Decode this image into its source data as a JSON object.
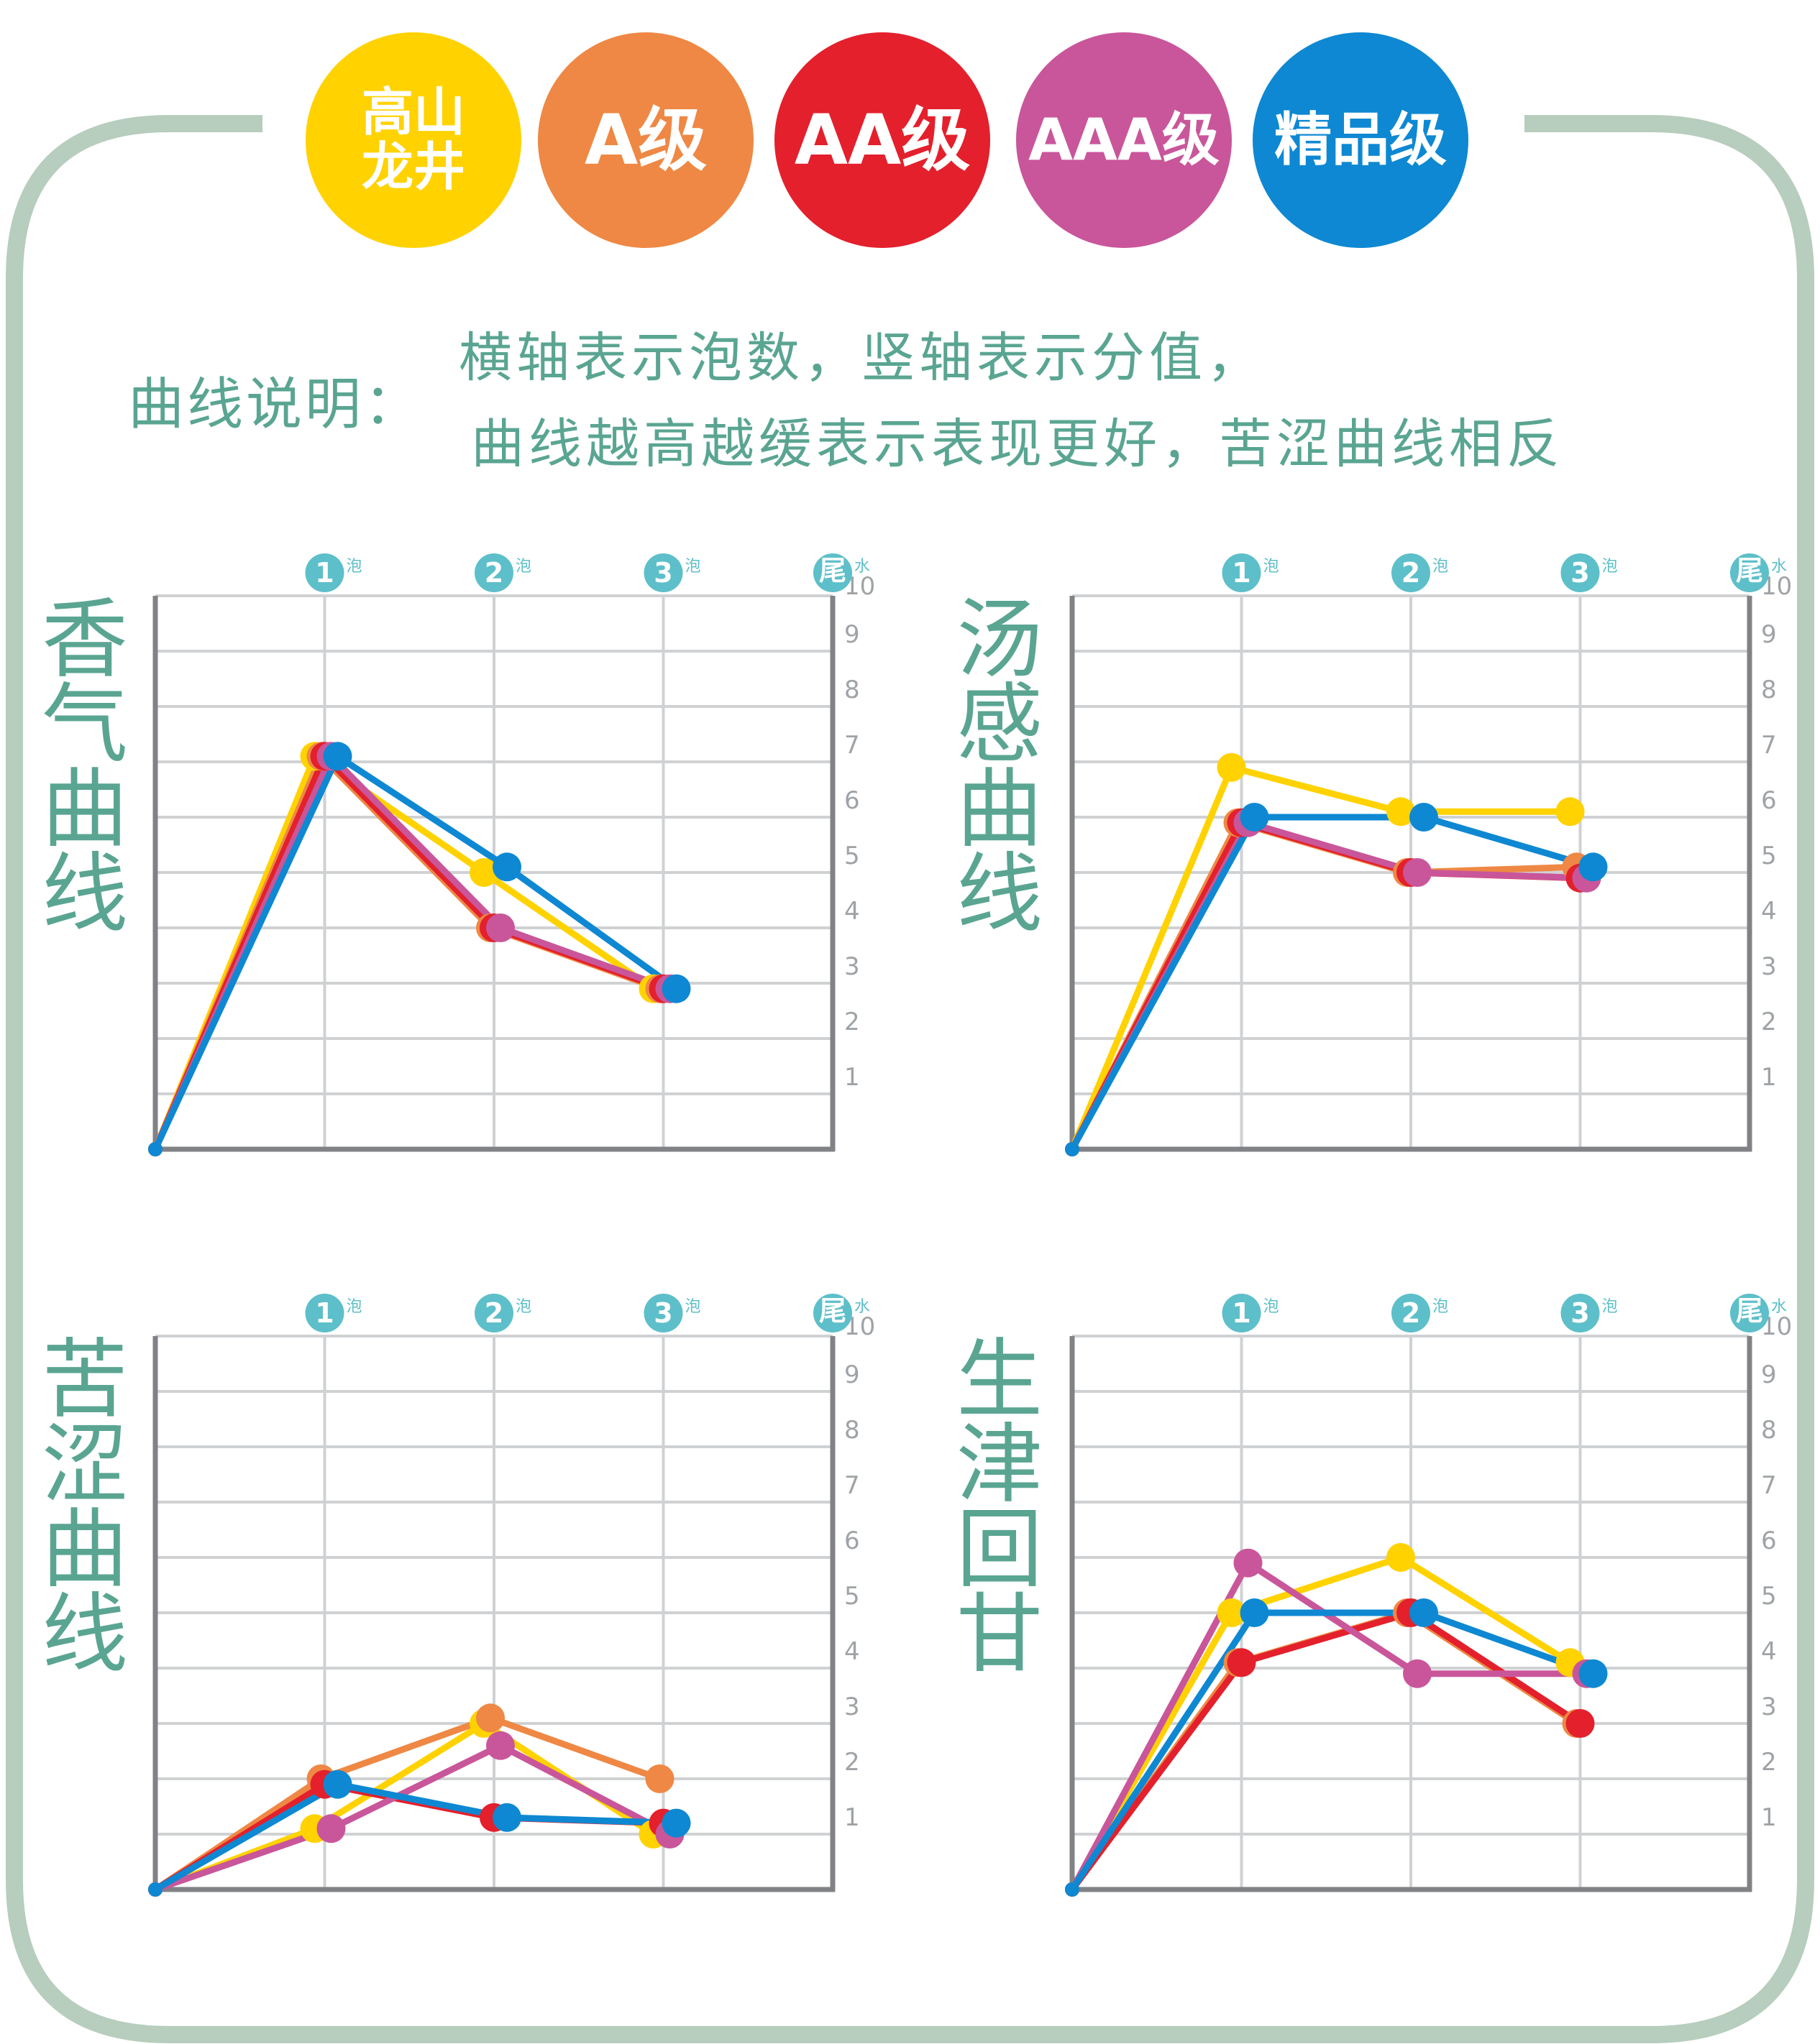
{
  "legend": [
    {
      "label": "高山\n龙井",
      "color": "#ffd200",
      "font_size": 72
    },
    {
      "label": "A级",
      "color": "#ee8844",
      "font_size": 96
    },
    {
      "label": "AA级",
      "color": "#e3202c",
      "font_size": 96
    },
    {
      "label": "AAA级",
      "color": "#c9569a",
      "font_size": 80
    },
    {
      "label": "精品级",
      "color": "#0e88d2",
      "font_size": 80
    }
  ],
  "note": {
    "title": "曲线说明：",
    "line1": "横轴表示泡数，竖轴表示分值，",
    "line2": "曲线越高越缓表示表现更好，苦涩曲线相反"
  },
  "x_markers": [
    {
      "num": "1",
      "unit": "泡"
    },
    {
      "num": "2",
      "unit": "泡"
    },
    {
      "num": "3",
      "unit": "泡"
    },
    {
      "num": "尾",
      "unit": "水"
    }
  ],
  "y_ticks": [
    "1",
    "2",
    "3",
    "4",
    "5",
    "6",
    "7",
    "8",
    "9",
    "10"
  ],
  "colors": {
    "frame": "#b7cdbd",
    "grid": "#cfd1d3",
    "axis": "#808285",
    "marker": "#5dbfc9",
    "title": "#5aa592"
  },
  "chart_data": [
    {
      "type": "line",
      "title": "香气曲线",
      "x": [
        0,
        1,
        2,
        3
      ],
      "ylim": [
        0,
        10
      ],
      "series": [
        {
          "name": "高山龙井",
          "color": "#ffd200",
          "values": [
            0,
            7.1,
            5.0,
            2.9
          ]
        },
        {
          "name": "A级",
          "color": "#ee8844",
          "values": [
            0,
            7.1,
            4.0,
            2.9
          ]
        },
        {
          "name": "AA级",
          "color": "#e3202c",
          "values": [
            0,
            7.1,
            4.0,
            2.9
          ]
        },
        {
          "name": "AAA级",
          "color": "#c9569a",
          "values": [
            0,
            7.1,
            4.0,
            2.9
          ]
        },
        {
          "name": "精品级",
          "color": "#0e88d2",
          "values": [
            0,
            7.1,
            5.1,
            2.9
          ]
        }
      ]
    },
    {
      "type": "line",
      "title": "汤感曲线",
      "x": [
        0,
        1,
        2,
        3
      ],
      "ylim": [
        0,
        10
      ],
      "series": [
        {
          "name": "高山龙井",
          "color": "#ffd200",
          "values": [
            0,
            6.9,
            6.1,
            6.1
          ]
        },
        {
          "name": "A级",
          "color": "#ee8844",
          "values": [
            0,
            5.9,
            5.0,
            5.1
          ]
        },
        {
          "name": "AA级",
          "color": "#e3202c",
          "values": [
            0,
            5.9,
            5.0,
            4.9
          ]
        },
        {
          "name": "AAA级",
          "color": "#c9569a",
          "values": [
            0,
            5.9,
            5.0,
            4.9
          ]
        },
        {
          "name": "精品级",
          "color": "#0e88d2",
          "values": [
            0,
            6.0,
            6.0,
            5.1
          ]
        }
      ]
    },
    {
      "type": "line",
      "title": "苦涩曲线",
      "x": [
        0,
        1,
        2,
        3
      ],
      "ylim": [
        0,
        10
      ],
      "series": [
        {
          "name": "高山龙井",
          "color": "#ffd200",
          "values": [
            0,
            1.1,
            3.0,
            1.0
          ]
        },
        {
          "name": "A级",
          "color": "#ee8844",
          "values": [
            0,
            2.0,
            3.1,
            2.0
          ]
        },
        {
          "name": "AA级",
          "color": "#e3202c",
          "values": [
            0,
            1.9,
            1.3,
            1.2
          ]
        },
        {
          "name": "AAA级",
          "color": "#c9569a",
          "values": [
            0,
            1.1,
            2.6,
            1.0
          ]
        },
        {
          "name": "精品级",
          "color": "#0e88d2",
          "values": [
            0,
            1.9,
            1.3,
            1.2
          ]
        }
      ]
    },
    {
      "type": "line",
      "title": "生津回甘",
      "x": [
        0,
        1,
        2,
        3
      ],
      "ylim": [
        0,
        10
      ],
      "series": [
        {
          "name": "高山龙井",
          "color": "#ffd200",
          "values": [
            0,
            5.0,
            6.0,
            4.1
          ]
        },
        {
          "name": "A级",
          "color": "#ee8844",
          "values": [
            0,
            4.1,
            5.0,
            3.0
          ]
        },
        {
          "name": "AA级",
          "color": "#e3202c",
          "values": [
            0,
            4.1,
            5.0,
            3.0
          ]
        },
        {
          "name": "AAA级",
          "color": "#c9569a",
          "values": [
            0,
            5.9,
            3.9,
            3.9
          ]
        },
        {
          "name": "精品级",
          "color": "#0e88d2",
          "values": [
            0,
            5.0,
            5.0,
            3.9
          ]
        }
      ]
    }
  ]
}
